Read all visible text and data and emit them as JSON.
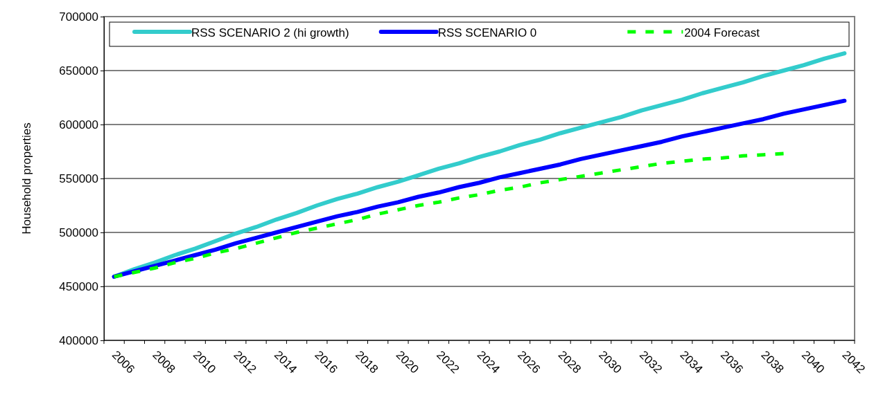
{
  "chart_data": {
    "type": "line",
    "ylabel": "Household properties",
    "categories": [
      "2006",
      null,
      "2008",
      null,
      "2010",
      null,
      "2012",
      null,
      "2014",
      null,
      "2016",
      null,
      "2018",
      null,
      "2020",
      null,
      "2022",
      null,
      "2024",
      null,
      "2026",
      null,
      "2028",
      null,
      "2030",
      null,
      "2032",
      null,
      "2034",
      null,
      "2036",
      null,
      "2038",
      null,
      "2040",
      null,
      "2042"
    ],
    "series": [
      {
        "name": "RSS SCENARIO 2 (hi growth)",
        "color": "#33cccc",
        "line_style": "solid",
        "values": [
          459000,
          466000,
          472000,
          479000,
          485000,
          492000,
          499000,
          505000,
          512000,
          518000,
          525000,
          531000,
          536000,
          542000,
          547000,
          553000,
          559000,
          564000,
          570000,
          575000,
          581000,
          586000,
          592000,
          597000,
          602000,
          607000,
          613000,
          618000,
          623000,
          629000,
          634000,
          639000,
          645000,
          650000,
          655000,
          661000,
          666000
        ]
      },
      {
        "name": "RSS SCENARIO 0",
        "color": "#0000ff",
        "line_style": "solid",
        "values": [
          459000,
          464000,
          469000,
          474000,
          479000,
          484000,
          490000,
          495000,
          500000,
          505000,
          510000,
          515000,
          519000,
          524000,
          528000,
          533000,
          537000,
          542000,
          546000,
          551000,
          555000,
          559000,
          563000,
          568000,
          572000,
          576000,
          580000,
          584000,
          589000,
          593000,
          597000,
          601000,
          605000,
          610000,
          614000,
          618000,
          622000
        ]
      },
      {
        "name": "2004 Forecast",
        "color": "#00ff00",
        "line_style": "dashed",
        "values": [
          459000,
          463000,
          467000,
          472000,
          476000,
          481000,
          485000,
          490000,
          495000,
          500000,
          504000,
          508000,
          512000,
          517000,
          521000,
          525000,
          528000,
          532000,
          535000,
          539000,
          542000,
          546000,
          549000,
          552000,
          555000,
          558000,
          561000,
          564000,
          566000,
          568000,
          569000,
          571000,
          572000,
          573000,
          null,
          null,
          null
        ]
      }
    ],
    "ylim": [
      400000,
      700000
    ],
    "yticks": [
      400000,
      450000,
      500000,
      550000,
      600000,
      650000,
      700000
    ],
    "grid": "y",
    "legend": "top",
    "marker": "none"
  }
}
